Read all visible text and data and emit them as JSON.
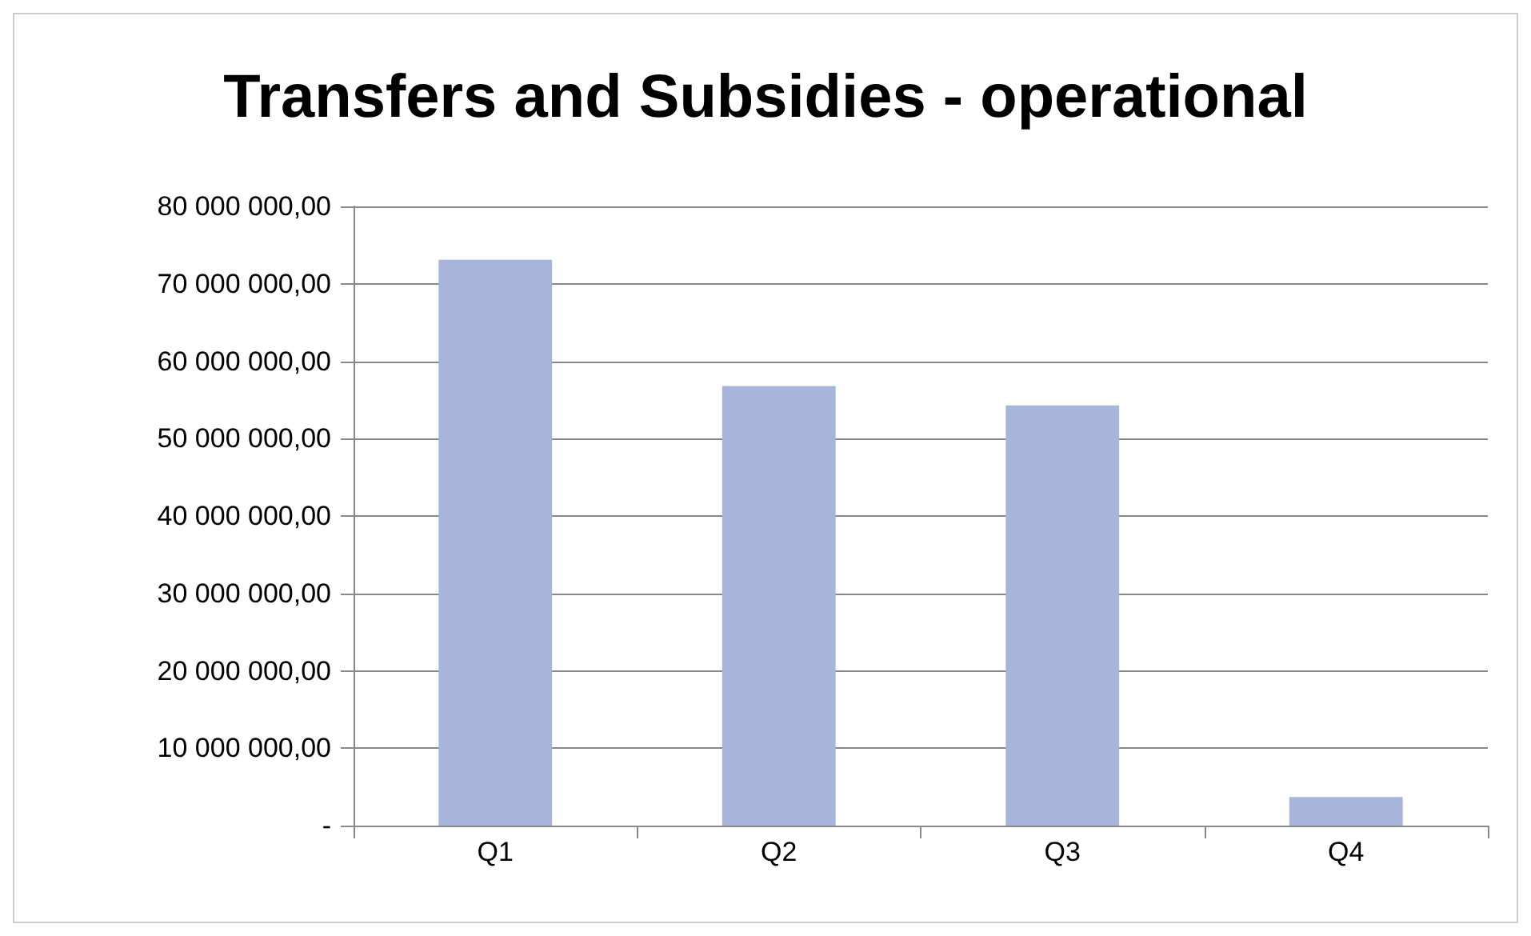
{
  "chart_data": {
    "type": "bar",
    "title": "Transfers and Subsidies - operational",
    "categories": [
      "Q1",
      "Q2",
      "Q3",
      "Q4"
    ],
    "values": [
      73100000,
      56800000,
      54300000,
      3700000
    ],
    "color": "#a6b5d9",
    "ylim": [
      0,
      80000000
    ],
    "yticks": [
      {
        "value": 0,
        "label": "-"
      },
      {
        "value": 10000000,
        "label": "10 000 000,00"
      },
      {
        "value": 20000000,
        "label": "20 000 000,00"
      },
      {
        "value": 30000000,
        "label": "30 000 000,00"
      },
      {
        "value": 40000000,
        "label": "40 000 000,00"
      },
      {
        "value": 50000000,
        "label": "50 000 000,00"
      },
      {
        "value": 60000000,
        "label": "60 000 000,00"
      },
      {
        "value": 70000000,
        "label": "70 000 000,00"
      },
      {
        "value": 80000000,
        "label": "80 000 000,00"
      }
    ],
    "grid": "y"
  }
}
